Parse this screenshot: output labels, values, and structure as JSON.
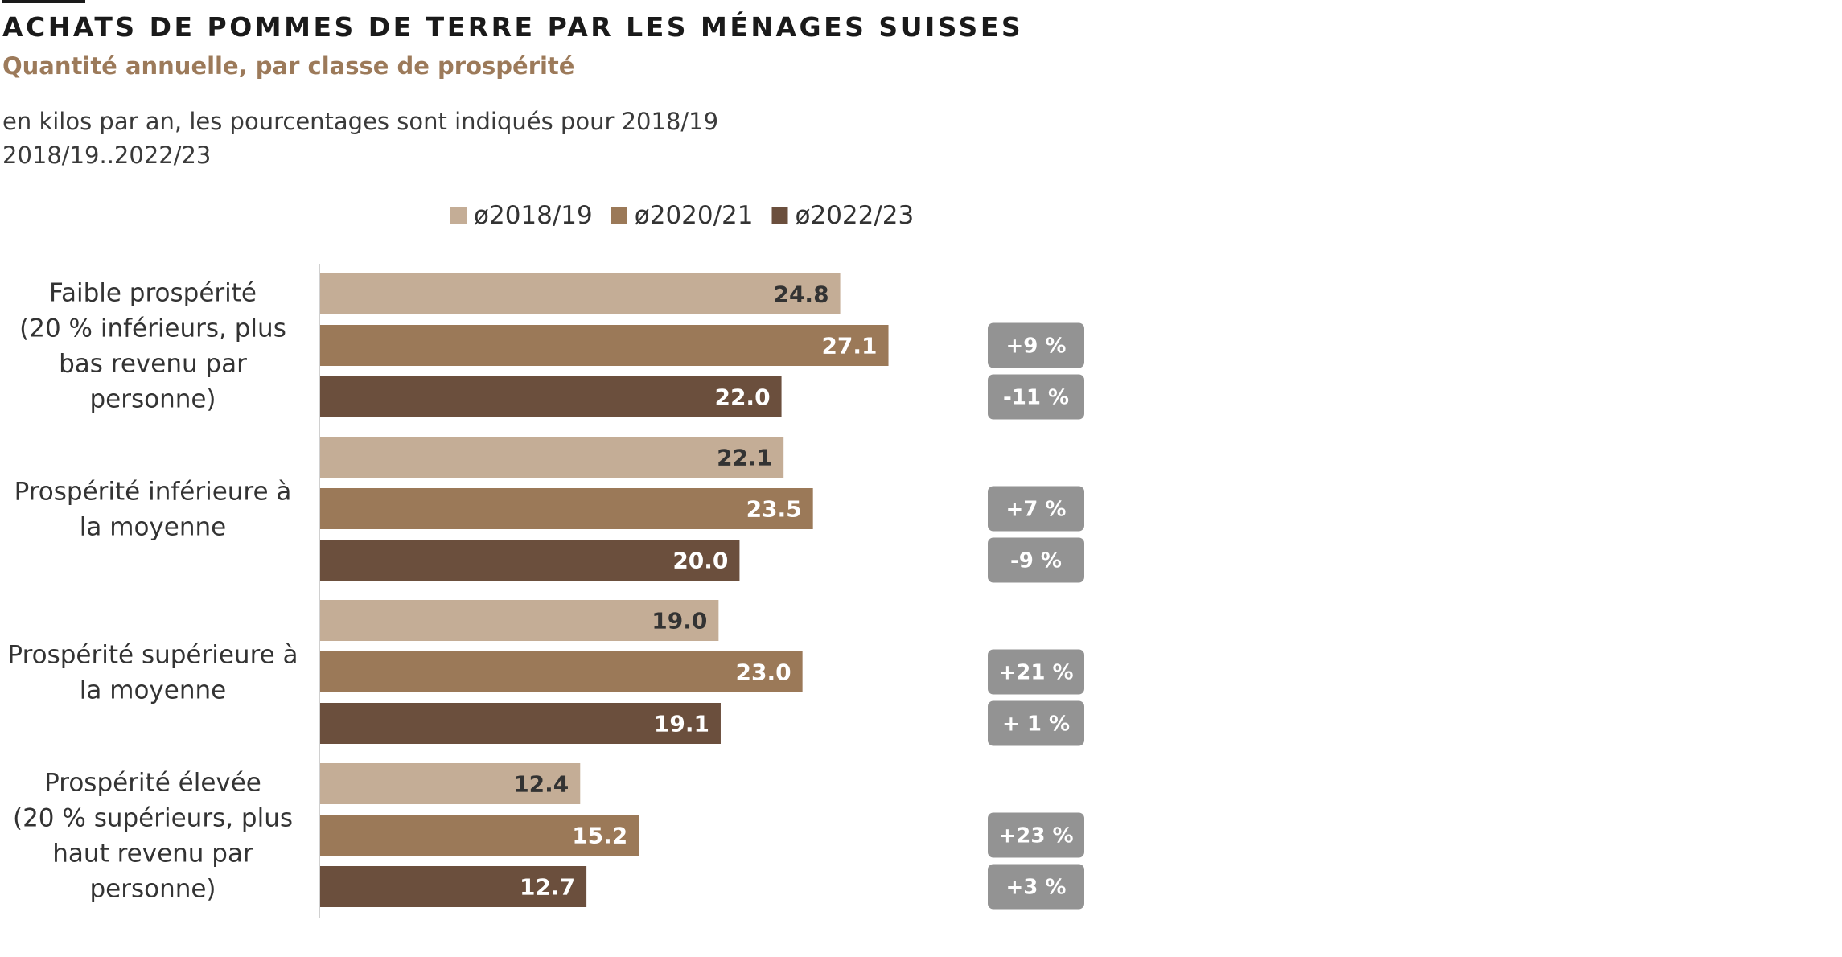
{
  "title": "ACHATS DE POMMES DE TERRE PAR LES MÉNAGES SUISSES",
  "subtitle": "Quantité annuelle, par classe de prospérité",
  "note_lines": [
    "en kilos par an, les pourcentages sont indiqués pour 2018/19",
    "2018/19..2022/23"
  ],
  "chart_data": {
    "type": "bar",
    "orientation": "horizontal",
    "unit": "kg",
    "legend_position": "top",
    "grid": false,
    "xlim": [
      0,
      28
    ],
    "categories": [
      [
        "Faible prospérité",
        "(20 % inférieurs, plus",
        "bas revenu par",
        "personne)"
      ],
      [
        "Prospérité inférieure à",
        "la moyenne"
      ],
      [
        "Prospérité supérieure à",
        "la moyenne"
      ],
      [
        "Prospérité élevée",
        "(20 % supérieurs, plus",
        "haut revenu par",
        "personne)"
      ]
    ],
    "series": [
      {
        "name": "ø2018/19",
        "color": "#c4ad96",
        "label_color": "#333333",
        "values": [
          24.8,
          22.1,
          19.0,
          12.4
        ],
        "labels": [
          "24.8",
          "22.1",
          "19.0",
          "12.4"
        ]
      },
      {
        "name": "ø2020/21",
        "color": "#9b7958",
        "label_color": "#ffffff",
        "values": [
          27.1,
          23.5,
          23.0,
          15.2
        ],
        "labels": [
          "27.1",
          "23.5",
          "23.0",
          "15.2"
        ]
      },
      {
        "name": "ø2022/23",
        "color": "#6b4f3d",
        "label_color": "#ffffff",
        "values": [
          22.0,
          20.0,
          19.1,
          12.7
        ],
        "labels": [
          "22.0",
          "20.0",
          "19.1",
          "12.7"
        ]
      }
    ],
    "percent_changes": [
      [
        null,
        "+9 %",
        "-11 %"
      ],
      [
        null,
        "+7 %",
        "-9 %"
      ],
      [
        null,
        "+21 %",
        "+ 1 %"
      ],
      [
        null,
        "+23 %",
        "+3 %"
      ]
    ],
    "badge_color": "#939393"
  }
}
